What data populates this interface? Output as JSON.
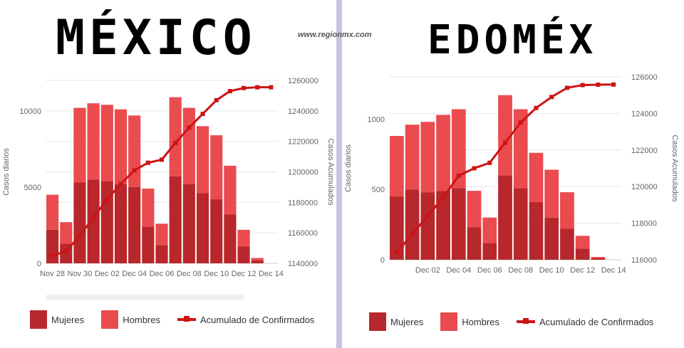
{
  "watermark": "www.regionmx.com",
  "colors": {
    "mujeres": "#b8272b",
    "hombres": "#ea4b4e",
    "acumulado": "#cc1414",
    "divider": "#c9c2e3"
  },
  "chart_data": [
    {
      "type": "bar",
      "title": "MÉXICO",
      "categories": [
        "Nov 28",
        "Nov 29",
        "Nov 30",
        "Dec 01",
        "Dec 02",
        "Dec 03",
        "Dec 04",
        "Dec 05",
        "Dec 06",
        "Dec 07",
        "Dec 08",
        "Dec 09",
        "Dec 10",
        "Dec 11",
        "Dec 12",
        "Dec 13",
        "Dec 14"
      ],
      "x_tick_labels": [
        "Nov 28",
        "Nov 30",
        "Dec 02",
        "Dec 04",
        "Dec 06",
        "Dec 08",
        "Dec 10",
        "Dec 12",
        "Dec 14"
      ],
      "ylabel": "Casos diarios",
      "y2label": "Casos Acumulados",
      "ylim": [
        0,
        12000
      ],
      "y_ticks": [
        0,
        5000,
        10000
      ],
      "y2lim": [
        1140000,
        1260000
      ],
      "y2_ticks": [
        1140000,
        1160000,
        1180000,
        1200000,
        1220000,
        1240000,
        1260000
      ],
      "series": [
        {
          "name": "Mujeres",
          "values": [
            2200,
            1300,
            5300,
            5500,
            5400,
            5200,
            5000,
            2400,
            1200,
            5700,
            5200,
            4600,
            4200,
            3200,
            1100,
            200,
            0
          ]
        },
        {
          "name": "Hombres",
          "values": [
            2300,
            1400,
            4900,
            5000,
            5000,
            4900,
            4700,
            2500,
            1400,
            5200,
            5000,
            4400,
            4200,
            3200,
            1100,
            150,
            0
          ]
        },
        {
          "name": "Acumulado de Confirmados",
          "axis": "right",
          "values": [
            1145000,
            1148000,
            1158000,
            1170000,
            1182000,
            1192000,
            1201000,
            1206000,
            1208000,
            1219000,
            1229000,
            1238000,
            1247000,
            1253000,
            1255000,
            1255500,
            1255500
          ]
        }
      ],
      "legend_position": "bottom"
    },
    {
      "type": "bar",
      "title": "EDOMÉX",
      "categories": [
        "Nov 30",
        "Dec 01",
        "Dec 02",
        "Dec 03",
        "Dec 04",
        "Dec 05",
        "Dec 06",
        "Dec 07",
        "Dec 08",
        "Dec 09",
        "Dec 10",
        "Dec 11",
        "Dec 12",
        "Dec 13",
        "Dec 14"
      ],
      "x_tick_labels": [
        "Dec 02",
        "Dec 04",
        "Dec 06",
        "Dec 08",
        "Dec 10",
        "Dec 12",
        "Dec 14"
      ],
      "ylabel": "Casos diarios",
      "y2label": "Casos Acumulados",
      "ylim": [
        0,
        1300
      ],
      "y_ticks": [
        0,
        500,
        1000
      ],
      "y2lim": [
        116000,
        126000
      ],
      "y2_ticks": [
        116000,
        118000,
        120000,
        122000,
        124000,
        126000
      ],
      "series": [
        {
          "name": "Mujeres",
          "values": [
            450,
            500,
            480,
            490,
            510,
            230,
            120,
            600,
            510,
            410,
            300,
            220,
            80,
            10,
            0
          ]
        },
        {
          "name": "Hombres",
          "values": [
            430,
            460,
            500,
            540,
            560,
            260,
            180,
            570,
            560,
            350,
            340,
            260,
            90,
            10,
            0
          ]
        },
        {
          "name": "Acumulado de Confirmados",
          "axis": "right",
          "values": [
            116400,
            117400,
            118400,
            119400,
            120600,
            121000,
            121300,
            122400,
            123500,
            124300,
            124900,
            125400,
            125550,
            125570,
            125580
          ]
        }
      ],
      "legend_position": "bottom"
    }
  ],
  "legend": [
    {
      "label": "Mujeres"
    },
    {
      "label": "Hombres"
    },
    {
      "label": "Acumulado de Confirmados"
    }
  ]
}
